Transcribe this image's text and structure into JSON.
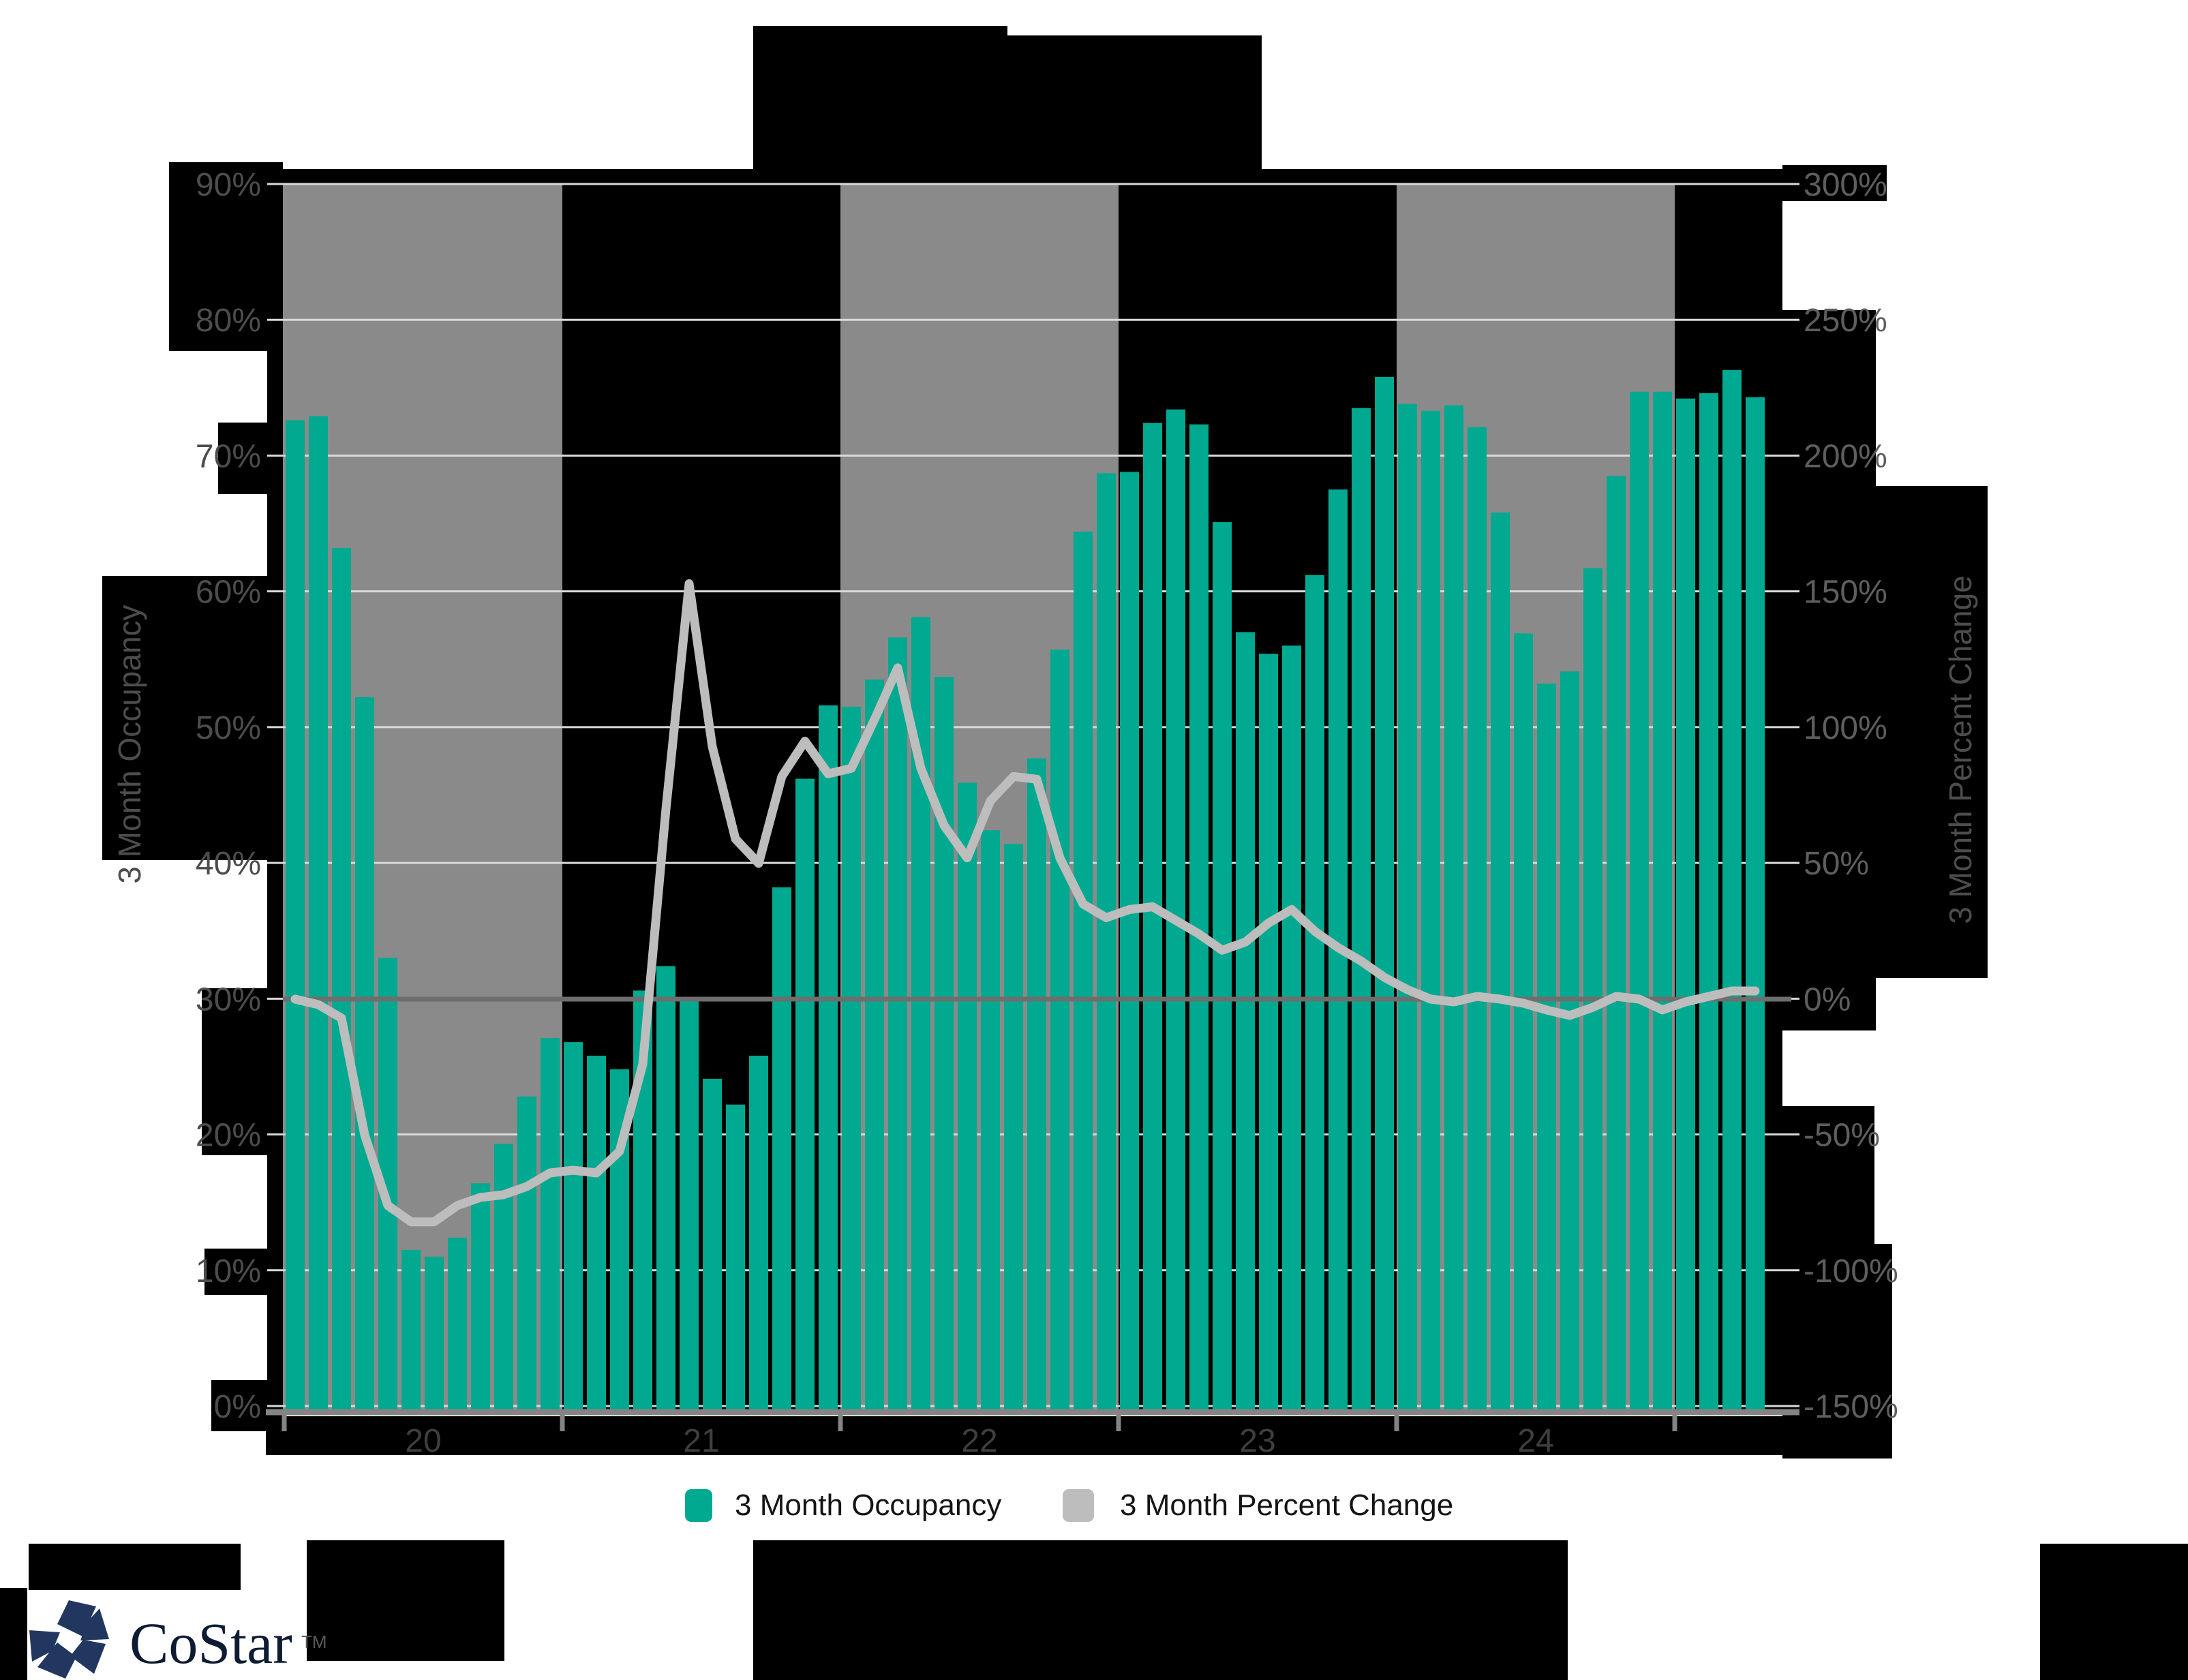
{
  "chart_data": {
    "type": "bar",
    "title": "(redacted)",
    "x_axis": {
      "tick_labels": [
        "20",
        "21",
        "22",
        "23",
        "24"
      ],
      "year_starts": [
        "2020",
        "2021",
        "2022",
        "2023",
        "2024",
        "2025"
      ]
    },
    "left_axis": {
      "title": "3 Month Occupancy",
      "tick_labels": [
        "90%",
        "80%",
        "70%",
        "60%",
        "50%",
        "40%",
        "30%",
        "20%",
        "10%",
        "0%"
      ],
      "min": 0,
      "max": 90,
      "step": 10
    },
    "right_axis": {
      "title": "3 Month Percent Change",
      "tick_labels": [
        "300%",
        "250%",
        "200%",
        "150%",
        "100%",
        "50%",
        "0%",
        "-50%",
        "-100%",
        "-150%"
      ],
      "min": -150,
      "max": 300,
      "step": 50
    },
    "months": [
      "2020-01",
      "2020-02",
      "2020-03",
      "2020-04",
      "2020-05",
      "2020-06",
      "2020-07",
      "2020-08",
      "2020-09",
      "2020-10",
      "2020-11",
      "2020-12",
      "2021-01",
      "2021-02",
      "2021-03",
      "2021-04",
      "2021-05",
      "2021-06",
      "2021-07",
      "2021-08",
      "2021-09",
      "2021-10",
      "2021-11",
      "2021-12",
      "2022-01",
      "2022-02",
      "2022-03",
      "2022-04",
      "2022-05",
      "2022-06",
      "2022-07",
      "2022-08",
      "2022-09",
      "2022-10",
      "2022-11",
      "2022-12",
      "2023-01",
      "2023-02",
      "2023-03",
      "2023-04",
      "2023-05",
      "2023-06",
      "2023-07",
      "2023-08",
      "2023-09",
      "2023-10",
      "2023-11",
      "2023-12",
      "2024-01",
      "2024-02",
      "2024-03",
      "2024-04",
      "2024-05",
      "2024-06",
      "2024-07",
      "2024-08",
      "2024-09",
      "2024-10",
      "2024-11",
      "2024-12",
      "2025-01",
      "2025-02",
      "2025-03",
      "2025-04"
    ],
    "series": [
      {
        "name": "3 Month Occupancy",
        "unit": "%",
        "axis": "left",
        "kind": "bar",
        "color": "#00A98F",
        "values": [
          72.6,
          72.9,
          63.2,
          52.2,
          33.0,
          11.5,
          11.0,
          12.4,
          16.4,
          19.3,
          22.8,
          27.1,
          26.8,
          25.8,
          24.8,
          30.6,
          32.4,
          30.0,
          24.1,
          22.2,
          25.8,
          38.2,
          46.2,
          51.6,
          51.5,
          53.5,
          56.6,
          58.1,
          53.7,
          45.9,
          42.4,
          41.4,
          47.7,
          55.7,
          64.4,
          68.7,
          68.8,
          72.4,
          73.4,
          72.3,
          65.1,
          57.0,
          55.4,
          56.0,
          61.2,
          67.5,
          73.5,
          75.8,
          73.8,
          73.3,
          73.7,
          72.1,
          65.8,
          56.9,
          53.2,
          54.1,
          61.7,
          68.5,
          74.7,
          74.7,
          74.2,
          74.6,
          76.3,
          74.3
        ]
      },
      {
        "name": "3 Month Percent Change",
        "unit": "%",
        "axis": "right",
        "kind": "line",
        "color": "#BDBDBD",
        "values": [
          0,
          -2,
          -7,
          -50,
          -76,
          -82,
          -82,
          -76,
          -73,
          -72,
          -69,
          -64,
          -63,
          -64,
          -56,
          -24,
          70,
          153,
          93,
          59,
          50,
          82,
          95,
          83,
          85,
          103,
          122,
          85,
          64,
          52,
          73,
          82,
          81,
          52,
          35,
          30,
          33,
          34,
          29,
          24,
          18,
          21,
          28,
          33,
          25,
          19,
          14,
          8,
          3.5,
          0,
          -1,
          1,
          0,
          -1.5,
          -4,
          -6,
          -3,
          1,
          0,
          -4,
          -1,
          1,
          3,
          3
        ]
      }
    ],
    "legend": [
      {
        "label": "3 Month Occupancy",
        "swatch": "#00A98F"
      },
      {
        "label": "3 Month Percent Change",
        "swatch": "#BDBDBD"
      }
    ],
    "grid": true,
    "zero_line_right_axis": true,
    "year_band_colors": [
      "#8A8A8A",
      "#000000"
    ]
  },
  "branding": {
    "logo_text": "CoStar",
    "logo_tm": "TM",
    "logo_star_color": "#21375F",
    "logo_text_color": "#0D1B33"
  },
  "colors": {
    "bar": "#00A98F",
    "line": "#BDBDBD",
    "band_gray": "#8A8A8A",
    "band_black": "#000000",
    "gridline": "#D9D9D9",
    "zero_line": "#6E6E6E",
    "baseline": "#848484",
    "tick_text_left": "#4D4D4D",
    "tick_text_right": "#5E5E5E",
    "year_text": "#3F3F3F",
    "axis_title_text": "#4D4D4D",
    "legend_text": "#141414",
    "redaction": "#000000"
  },
  "redactions": {
    "boxes": [
      [
        1105,
        38,
        373,
        214
      ],
      [
        1478,
        52,
        373,
        200
      ],
      [
        415,
        248,
        2200,
        24
      ],
      [
        248,
        238,
        167,
        277
      ],
      [
        320,
        620,
        95,
        105
      ],
      [
        150,
        845,
        265,
        417
      ],
      [
        296,
        1450,
        119,
        245
      ],
      [
        300,
        1832,
        115,
        68
      ],
      [
        310,
        2025,
        105,
        75
      ],
      [
        392,
        238,
        23,
        1874
      ],
      [
        2615,
        242,
        153,
        53
      ],
      [
        2615,
        455,
        137,
        1057
      ],
      [
        2752,
        713,
        164,
        722
      ],
      [
        2615,
        1623,
        135,
        202
      ],
      [
        2615,
        1825,
        161,
        315
      ],
      [
        390,
        2078,
        2226,
        57
      ],
      [
        42,
        2265,
        311,
        68
      ],
      [
        0,
        2330,
        40,
        135
      ],
      [
        450,
        2260,
        290,
        177
      ],
      [
        1105,
        2260,
        1195,
        205
      ],
      [
        2993,
        2265,
        217,
        200
      ]
    ]
  }
}
